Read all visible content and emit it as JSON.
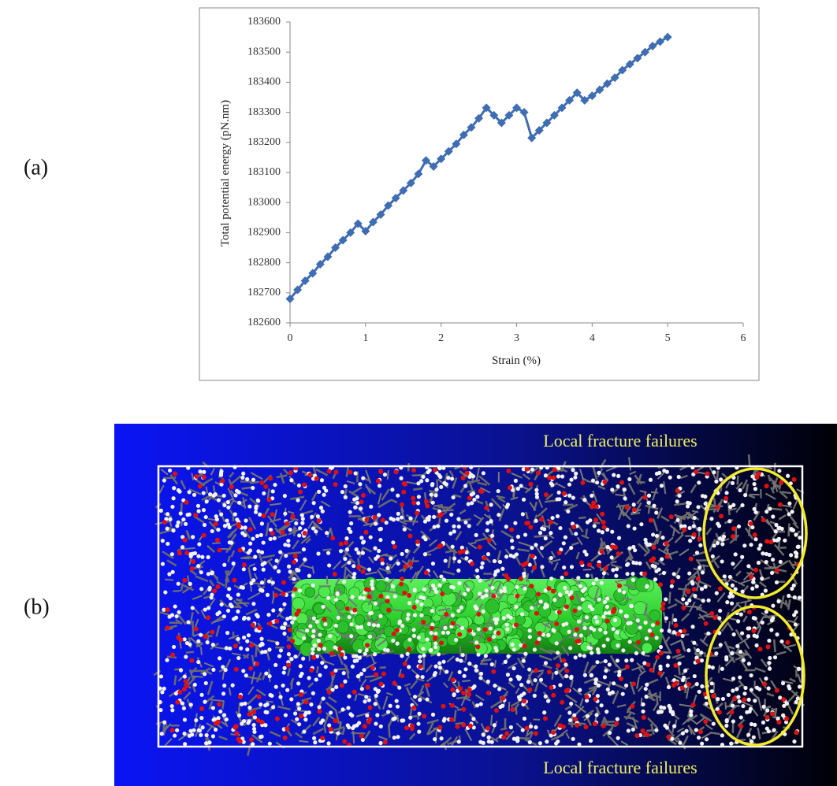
{
  "panel_labels": [
    "(a)",
    "(b)"
  ],
  "chart_data": {
    "type": "line",
    "xlabel": "Strain (%)",
    "ylabel": "Total potential energy (pN.nm)",
    "x": [
      0,
      0.1,
      0.2,
      0.3,
      0.4,
      0.5,
      0.6,
      0.7,
      0.8,
      0.9,
      1,
      1.1,
      1.2,
      1.3,
      1.4,
      1.5,
      1.6,
      1.7,
      1.8,
      1.9,
      2,
      2.1,
      2.2,
      2.3,
      2.4,
      2.5,
      2.6,
      2.7,
      2.8,
      2.9,
      3,
      3.1,
      3.2,
      3.3,
      3.4,
      3.5,
      3.6,
      3.7,
      3.8,
      3.9,
      4,
      4.1,
      4.2,
      4.3,
      4.4,
      4.5,
      4.6,
      4.7,
      4.8,
      4.9,
      5
    ],
    "series": [
      {
        "name": "Total potential energy",
        "color": "#3f6db3",
        "values": [
          182680,
          182710,
          182740,
          182765,
          182795,
          182820,
          182850,
          182875,
          182900,
          182930,
          182905,
          182935,
          182960,
          182990,
          183015,
          183040,
          183065,
          183095,
          183140,
          183120,
          183145,
          183170,
          183195,
          183225,
          183250,
          183280,
          183315,
          183290,
          183265,
          183290,
          183315,
          183300,
          183215,
          183240,
          183265,
          183290,
          183315,
          183340,
          183365,
          183340,
          183355,
          183375,
          183395,
          183415,
          183440,
          183460,
          183480,
          183500,
          183520,
          183535,
          183550
        ]
      }
    ],
    "xlim": [
      0,
      6
    ],
    "xticks": [
      0,
      1,
      2,
      3,
      4,
      5,
      6
    ],
    "ylim": [
      182600,
      183600
    ],
    "yticks": [
      182600,
      182700,
      182800,
      182900,
      183000,
      183100,
      183200,
      183300,
      183400,
      183500,
      183600
    ],
    "grid": false,
    "legend": false
  },
  "image": {
    "annotations": [
      "Local fracture failures",
      "Local fracture failures"
    ]
  }
}
